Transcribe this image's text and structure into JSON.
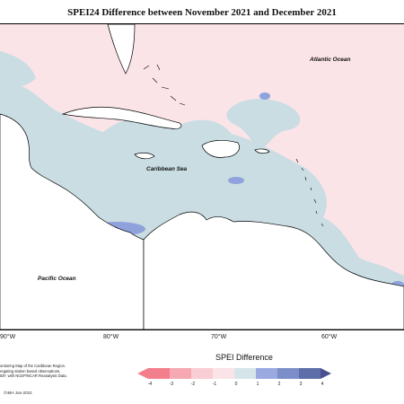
{
  "title": "SPEI24 Difference between November 2021 and December 2021",
  "map": {
    "ocean_labels": {
      "atlantic": "Atlantic Ocean",
      "caribbean": "Caribbean Sea",
      "pacific": "Pacific Ocean"
    },
    "longitude_labels": [
      "90°W",
      "80°W",
      "70°W",
      "60°W"
    ],
    "colors": {
      "dry_light": "#fbe4e8",
      "wet_light": "#c9dde3",
      "wet_medium": "#8fa2db",
      "land": "#ffffff",
      "outline": "#000000"
    }
  },
  "footer": {
    "lines": [
      "onitoring Map of the Caribbean Region.",
      "regating station based observations,",
      "IDF, with NCEP/NCAR Reanalysis Data."
    ],
    "copyright": "©IMH Jan-2022"
  },
  "legend": {
    "title": "SPEI Difference",
    "ticks": [
      "-4",
      "-3",
      "-2",
      "-1",
      "0",
      "1",
      "2",
      "3",
      "4"
    ],
    "colors": [
      "#f37f8c",
      "#f6a9b3",
      "#f8cdd3",
      "#fbe4e8",
      "#d5e5ea",
      "#9aa9e0",
      "#7b8ec9",
      "#5e6ea8",
      "#474f8f"
    ]
  }
}
